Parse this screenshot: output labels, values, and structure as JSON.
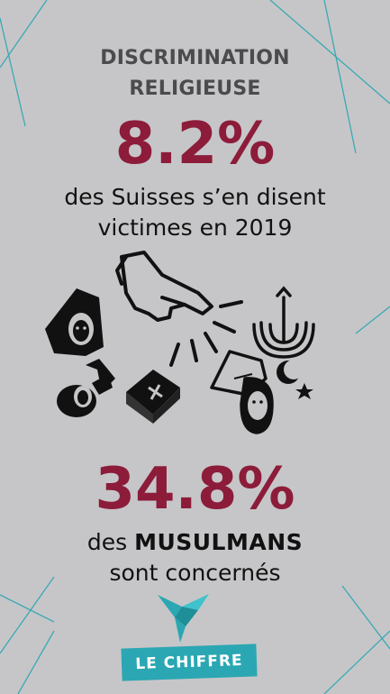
{
  "header": {
    "title_line1": "DISCRIMINATION",
    "title_line2": "RELIGIEUSE"
  },
  "stat1": {
    "value": "8.2%",
    "line1": "des Suisses s’en disent",
    "line2": "victimes en 2019"
  },
  "stat2": {
    "value": "34.8%",
    "prefix": "des",
    "emphasis": "MUSULMANS",
    "line2": "sont concernés"
  },
  "illustration": {
    "icons": [
      "pointing-hand-icon",
      "nun-veil-icon",
      "menorah-icon",
      "crescent-star-icon",
      "wimple-face-icon",
      "bible-icon",
      "hijab-face-icon"
    ],
    "accent_color": "#8c1c3a"
  },
  "footer": {
    "badge_label": "LE CHIFFRE",
    "badge_color": "#2aa7b3",
    "logo_icon": "origami-bird-icon"
  }
}
